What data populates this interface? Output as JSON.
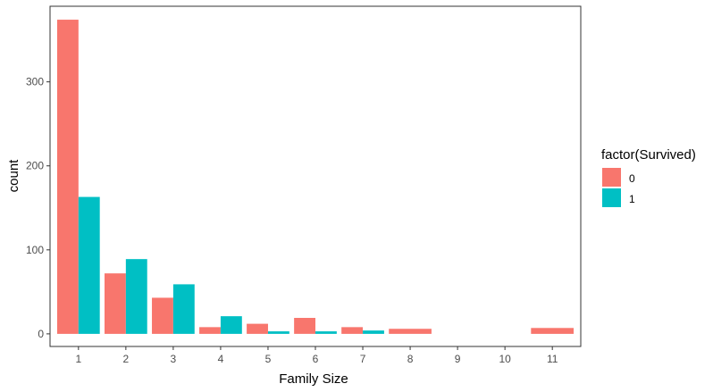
{
  "chart_data": {
    "type": "bar",
    "xlabel": "Family Size",
    "ylabel": "count",
    "x": [
      1,
      2,
      3,
      4,
      5,
      6,
      7,
      8,
      9,
      10,
      11
    ],
    "x_ticks": [
      "1",
      "2",
      "3",
      "4",
      "5",
      "6",
      "7",
      "8",
      "9",
      "10",
      "11"
    ],
    "y_ticks": [
      "0",
      "100",
      "200",
      "300"
    ],
    "ylim": [
      -15,
      390
    ],
    "xlim": [
      0.4,
      11.6
    ],
    "grid": false,
    "legend": {
      "title": "factor(Survived)",
      "position": "right",
      "entries": [
        "0",
        "1"
      ]
    },
    "series": [
      {
        "name": "0",
        "color": "#F8766D",
        "points": [
          {
            "x": 1,
            "value": 374
          },
          {
            "x": 2,
            "value": 72
          },
          {
            "x": 3,
            "value": 43
          },
          {
            "x": 4,
            "value": 8
          },
          {
            "x": 5,
            "value": 12
          },
          {
            "x": 6,
            "value": 19
          },
          {
            "x": 7,
            "value": 8
          },
          {
            "x": 8,
            "value": 6
          },
          {
            "x": 11,
            "value": 7
          }
        ]
      },
      {
        "name": "1",
        "color": "#00BFC4",
        "points": [
          {
            "x": 1,
            "value": 163
          },
          {
            "x": 2,
            "value": 89
          },
          {
            "x": 3,
            "value": 59
          },
          {
            "x": 4,
            "value": 21
          },
          {
            "x": 5,
            "value": 3
          },
          {
            "x": 6,
            "value": 3
          },
          {
            "x": 7,
            "value": 4
          }
        ]
      }
    ]
  }
}
